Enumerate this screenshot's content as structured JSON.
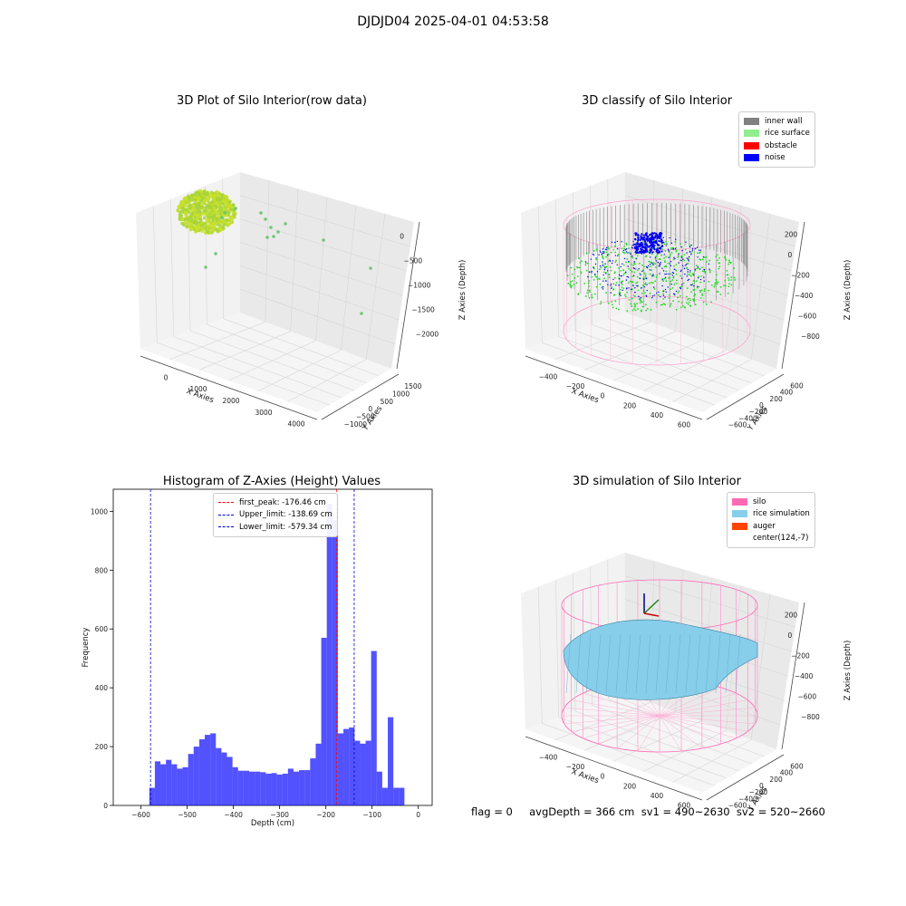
{
  "suptitle": "DJDJD04 2025-04-01 04:53:58",
  "footer": "flag = 0     avgDepth = 366 cm  sv1 = 490~2630  sv2 = 520~2660",
  "chart_data": [
    {
      "type": "scatter",
      "title": "3D Plot of Silo Interior(row data)",
      "xlabel": "X Axies",
      "ylabel": "Y Axies",
      "zlabel": "Z Axies (Depth)",
      "x_ticks": [
        "0",
        "1000",
        "2000",
        "3000",
        "4000"
      ],
      "y_ticks": [
        "−1000",
        "−500",
        "0",
        "500",
        "1000",
        "1500"
      ],
      "z_ticks": [
        "−2000",
        "−1500",
        "−1000",
        "−500",
        "0"
      ],
      "colors": {
        "cluster": "#c8e02a",
        "outlier": "#66c26a"
      }
    },
    {
      "type": "scatter",
      "title": "3D classify of Silo Interior",
      "xlabel": "X Axies",
      "ylabel": "Y Axies",
      "zlabel": "Z Axies (Depth)",
      "x_ticks": [
        "−400",
        "−200",
        "0",
        "200",
        "400",
        "600"
      ],
      "y_ticks": [
        "−600",
        "−400",
        "−200",
        "0",
        "200",
        "400",
        "600"
      ],
      "z_ticks": [
        "−800",
        "−600",
        "−400",
        "−200",
        "0",
        "200"
      ],
      "legend": [
        {
          "label": "inner wall",
          "color": "#808080"
        },
        {
          "label": "rice surface",
          "color": "#90ee90"
        },
        {
          "label": "obstacle",
          "color": "#ff0000"
        },
        {
          "label": "noise",
          "color": "#0000ff"
        }
      ]
    },
    {
      "type": "bar",
      "title": "Histogram of Z-Axies (Height) Values",
      "xlabel": "Depth (cm)",
      "ylabel": "Frequency",
      "xlim": [
        -660,
        30
      ],
      "ylim": [
        0,
        1075
      ],
      "x_ticks": [
        -600,
        -500,
        -400,
        -300,
        -200,
        -100,
        0
      ],
      "y_ticks": [
        0,
        200,
        400,
        600,
        800,
        1000
      ],
      "bin_width": 12,
      "bin_start": -582,
      "values": [
        60,
        150,
        140,
        155,
        140,
        125,
        130,
        175,
        200,
        225,
        240,
        245,
        195,
        180,
        165,
        130,
        118,
        118,
        115,
        115,
        113,
        108,
        110,
        105,
        108,
        125,
        115,
        120,
        120,
        160,
        210,
        570,
        1025,
        970,
        245,
        260,
        265,
        220,
        210,
        220,
        525,
        115,
        60,
        300,
        60,
        60
      ],
      "bar_color": "#0000ff",
      "vlines": [
        {
          "label": "first_peak: -176.46 cm",
          "x": -176.46,
          "color": "#ff0000"
        },
        {
          "label": "Upper_limit: -138.69 cm",
          "x": -138.69,
          "color": "#0000cc"
        },
        {
          "label": "Lower_limit: -579.34 cm",
          "x": -579.34,
          "color": "#0000cc"
        }
      ]
    },
    {
      "type": "area",
      "title": "3D simulation of Silo Interior",
      "xlabel": "X Axies",
      "ylabel": "Y Axies",
      "zlabel": "Z Axies (Depth)",
      "x_ticks": [
        "−400",
        "−200",
        "0",
        "200",
        "400",
        "600"
      ],
      "y_ticks": [
        "−600",
        "−400",
        "−200",
        "0",
        "200",
        "400",
        "600"
      ],
      "z_ticks": [
        "−800",
        "−600",
        "−400",
        "−200",
        "0",
        "200"
      ],
      "legend": [
        {
          "label": "silo",
          "color": "#ff69b4"
        },
        {
          "label": "rice simulation",
          "color": "#87ceeb"
        },
        {
          "label": "auger",
          "color": "#ff4500"
        },
        {
          "label": "center(124,-7)",
          "color": "#ffffff"
        }
      ]
    }
  ]
}
